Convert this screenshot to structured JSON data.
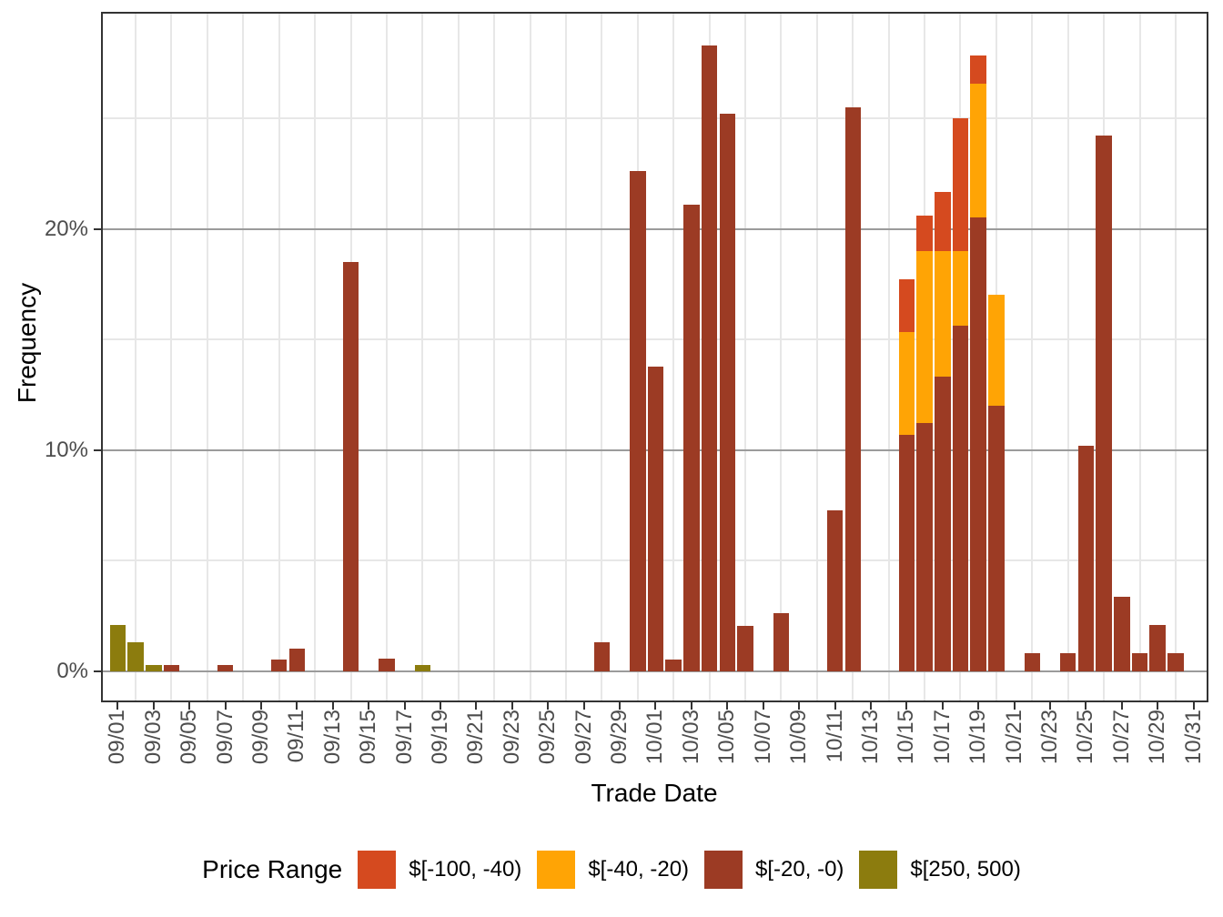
{
  "colors": {
    "background": "#FFFFFF",
    "panel_border": "#333333",
    "grid_major": "#9B9B9B",
    "grid_minor": "#E7E7E7",
    "tick_mark": "#333333",
    "tick_label": "#4D4D4D",
    "axis_title": "#000000",
    "legend_text": "#000000"
  },
  "y_axis": {
    "title": "Frequency",
    "major_ticks": [
      {
        "label": "0%",
        "value": 0
      },
      {
        "label": "10%",
        "value": 10
      },
      {
        "label": "20%",
        "value": 20
      }
    ],
    "minor_values": [
      5,
      15,
      25
    ]
  },
  "x_axis": {
    "title": "Trade Date",
    "tick_labels": [
      "09/01",
      "09/03",
      "09/05",
      "09/07",
      "09/09",
      "09/11",
      "09/13",
      "09/15",
      "09/17",
      "09/19",
      "09/21",
      "09/23",
      "09/25",
      "09/27",
      "09/29",
      "10/01",
      "10/03",
      "10/05",
      "10/07",
      "10/09",
      "10/11",
      "10/13",
      "10/15",
      "10/17",
      "10/19",
      "10/21",
      "10/23",
      "10/25",
      "10/27",
      "10/29",
      "10/31"
    ]
  },
  "legend": {
    "title": "Price Range"
  },
  "chart_data": {
    "type": "bar",
    "stacked": true,
    "value_unit": "percent",
    "title": "",
    "xlabel": "Trade Date",
    "ylabel": "Frequency",
    "x_range": [
      "09/01",
      "10/31"
    ],
    "ylim": [
      0,
      29.8
    ],
    "grid": "on",
    "legend_position": "bottom",
    "categories": [
      {
        "key": "m100_40",
        "label": "$[-100, -40)",
        "color": "#D54A1F"
      },
      {
        "key": "m40_20",
        "label": "$[-40, -20)",
        "color": "#FFA405"
      },
      {
        "key": "m20_0",
        "label": "$[-20, -0)",
        "color": "#9C3B24"
      },
      {
        "key": "p250_500",
        "label": "$[250, 500)",
        "color": "#8C7C0E"
      }
    ],
    "bars": [
      {
        "date": "09/01",
        "segments": [
          {
            "category": "p250_500",
            "value": 2.1
          }
        ]
      },
      {
        "date": "09/02",
        "segments": [
          {
            "category": "p250_500",
            "value": 1.3
          }
        ]
      },
      {
        "date": "09/03",
        "segments": [
          {
            "category": "p250_500",
            "value": 0.25
          }
        ]
      },
      {
        "date": "09/04",
        "segments": [
          {
            "category": "m20_0",
            "value": 0.25
          }
        ]
      },
      {
        "date": "09/07",
        "segments": [
          {
            "category": "m20_0",
            "value": 0.25
          }
        ]
      },
      {
        "date": "09/10",
        "segments": [
          {
            "category": "m20_0",
            "value": 0.5
          }
        ]
      },
      {
        "date": "09/11",
        "segments": [
          {
            "category": "m20_0",
            "value": 1.0
          }
        ]
      },
      {
        "date": "09/14",
        "segments": [
          {
            "category": "m20_0",
            "value": 18.5
          }
        ]
      },
      {
        "date": "09/16",
        "segments": [
          {
            "category": "m20_0",
            "value": 0.55
          }
        ]
      },
      {
        "date": "09/18",
        "segments": [
          {
            "category": "p250_500",
            "value": 0.25
          }
        ]
      },
      {
        "date": "09/28",
        "segments": [
          {
            "category": "m20_0",
            "value": 1.3
          }
        ]
      },
      {
        "date": "09/30",
        "segments": [
          {
            "category": "m20_0",
            "value": 22.6
          }
        ]
      },
      {
        "date": "10/01",
        "segments": [
          {
            "category": "m20_0",
            "value": 13.75
          }
        ]
      },
      {
        "date": "10/02",
        "segments": [
          {
            "category": "m20_0",
            "value": 0.5
          }
        ]
      },
      {
        "date": "10/03",
        "segments": [
          {
            "category": "m20_0",
            "value": 21.1
          }
        ]
      },
      {
        "date": "10/04",
        "segments": [
          {
            "category": "m20_0",
            "value": 28.3
          }
        ]
      },
      {
        "date": "10/05",
        "segments": [
          {
            "category": "m20_0",
            "value": 25.2
          }
        ]
      },
      {
        "date": "10/06",
        "segments": [
          {
            "category": "m20_0",
            "value": 2.05
          }
        ]
      },
      {
        "date": "10/08",
        "segments": [
          {
            "category": "m20_0",
            "value": 2.6
          }
        ]
      },
      {
        "date": "10/11",
        "segments": [
          {
            "category": "m20_0",
            "value": 7.25
          }
        ]
      },
      {
        "date": "10/12",
        "segments": [
          {
            "category": "m20_0",
            "value": 25.5
          }
        ]
      },
      {
        "date": "10/15",
        "segments": [
          {
            "category": "m20_0",
            "value": 10.7
          },
          {
            "category": "m40_20",
            "value": 4.65
          },
          {
            "category": "m100_40",
            "value": 2.35
          }
        ]
      },
      {
        "date": "10/16",
        "segments": [
          {
            "category": "m20_0",
            "value": 11.2
          },
          {
            "category": "m40_20",
            "value": 7.8
          },
          {
            "category": "m100_40",
            "value": 1.6
          }
        ]
      },
      {
        "date": "10/17",
        "segments": [
          {
            "category": "m20_0",
            "value": 13.3
          },
          {
            "category": "m40_20",
            "value": 5.7
          },
          {
            "category": "m100_40",
            "value": 2.65
          }
        ]
      },
      {
        "date": "10/18",
        "segments": [
          {
            "category": "m20_0",
            "value": 15.6
          },
          {
            "category": "m40_20",
            "value": 3.4
          },
          {
            "category": "m100_40",
            "value": 6.0
          }
        ]
      },
      {
        "date": "10/19",
        "segments": [
          {
            "category": "m20_0",
            "value": 20.5
          },
          {
            "category": "m40_20",
            "value": 6.05
          },
          {
            "category": "m100_40",
            "value": 1.3
          }
        ]
      },
      {
        "date": "10/20",
        "segments": [
          {
            "category": "m20_0",
            "value": 12.0
          },
          {
            "category": "m40_20",
            "value": 5.0
          }
        ]
      },
      {
        "date": "10/22",
        "segments": [
          {
            "category": "m20_0",
            "value": 0.8
          }
        ]
      },
      {
        "date": "10/24",
        "segments": [
          {
            "category": "m20_0",
            "value": 0.8
          }
        ]
      },
      {
        "date": "10/25",
        "segments": [
          {
            "category": "m20_0",
            "value": 10.2
          }
        ]
      },
      {
        "date": "10/26",
        "segments": [
          {
            "category": "m20_0",
            "value": 24.2
          }
        ]
      },
      {
        "date": "10/27",
        "segments": [
          {
            "category": "m20_0",
            "value": 3.35
          }
        ]
      },
      {
        "date": "10/28",
        "segments": [
          {
            "category": "m20_0",
            "value": 0.8
          }
        ]
      },
      {
        "date": "10/29",
        "segments": [
          {
            "category": "m20_0",
            "value": 2.1
          }
        ]
      },
      {
        "date": "10/30",
        "segments": [
          {
            "category": "m20_0",
            "value": 0.8
          }
        ]
      }
    ]
  }
}
